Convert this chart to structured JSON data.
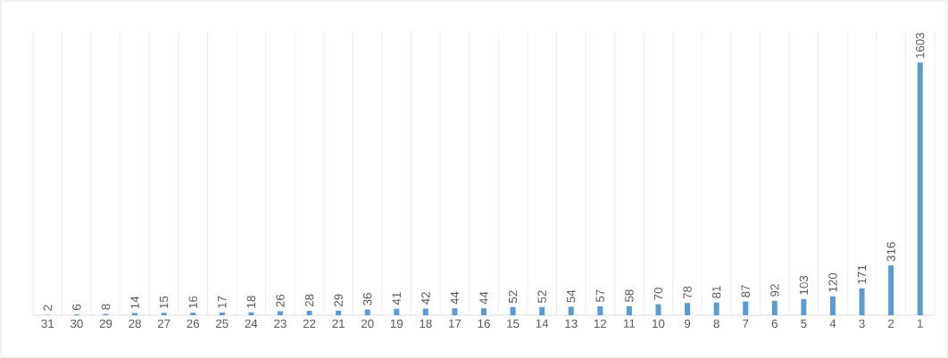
{
  "chart_data": {
    "type": "bar",
    "categories": [
      "31",
      "30",
      "29",
      "28",
      "27",
      "26",
      "25",
      "24",
      "23",
      "22",
      "21",
      "20",
      "19",
      "18",
      "17",
      "16",
      "15",
      "14",
      "13",
      "12",
      "11",
      "10",
      "9",
      "8",
      "7",
      "6",
      "5",
      "4",
      "3",
      "2",
      "1"
    ],
    "values": [
      2,
      6,
      8,
      14,
      15,
      16,
      17,
      18,
      26,
      28,
      29,
      36,
      41,
      42,
      44,
      44,
      52,
      52,
      54,
      57,
      58,
      70,
      78,
      81,
      87,
      92,
      103,
      120,
      171,
      316,
      1603
    ],
    "color": "#5b9bd5",
    "data_labels": true,
    "grid": "x"
  }
}
